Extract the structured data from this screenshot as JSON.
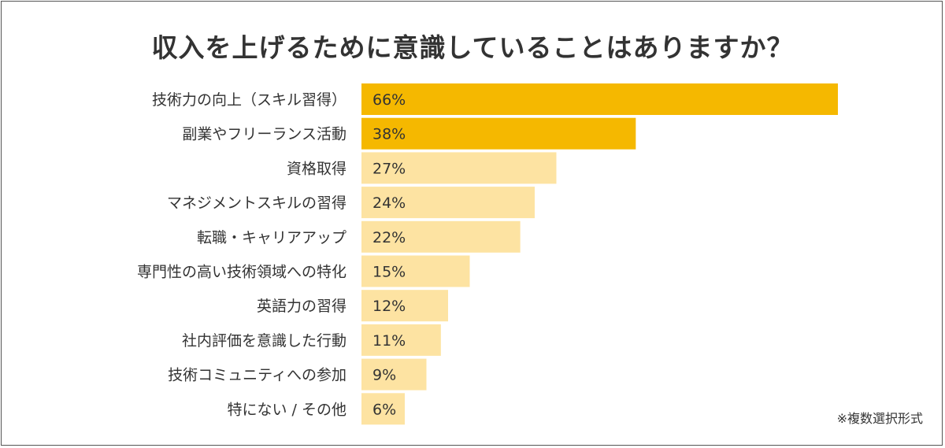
{
  "chart_data": {
    "type": "bar",
    "orientation": "horizontal",
    "title": "収入を上げるために意識していることはありますか？",
    "categories": [
      "技術力の向上（スキル習得）",
      "副業やフリーランス活動",
      "資格取得",
      "マネジメントスキルの習得",
      "転職・キャリアアップ",
      "専門性の高い技術領域への特化",
      "英語力の習得",
      "社内評価を意識した行動",
      "技術コミュニティへの参加",
      "特にない / その他"
    ],
    "values": [
      66,
      38,
      27,
      24,
      22,
      15,
      12,
      11,
      9,
      6
    ],
    "data_labels": [
      "66%",
      "38%",
      "27%",
      "24%",
      "22%",
      "15%",
      "12%",
      "11%",
      "9%",
      "6%"
    ],
    "unit": "%",
    "highlight_count": 2,
    "colors": {
      "highlight": "#F5B800",
      "normal": "#FDE3A2",
      "label": "#333333"
    },
    "grid": false,
    "note": "※複数選択形式"
  }
}
